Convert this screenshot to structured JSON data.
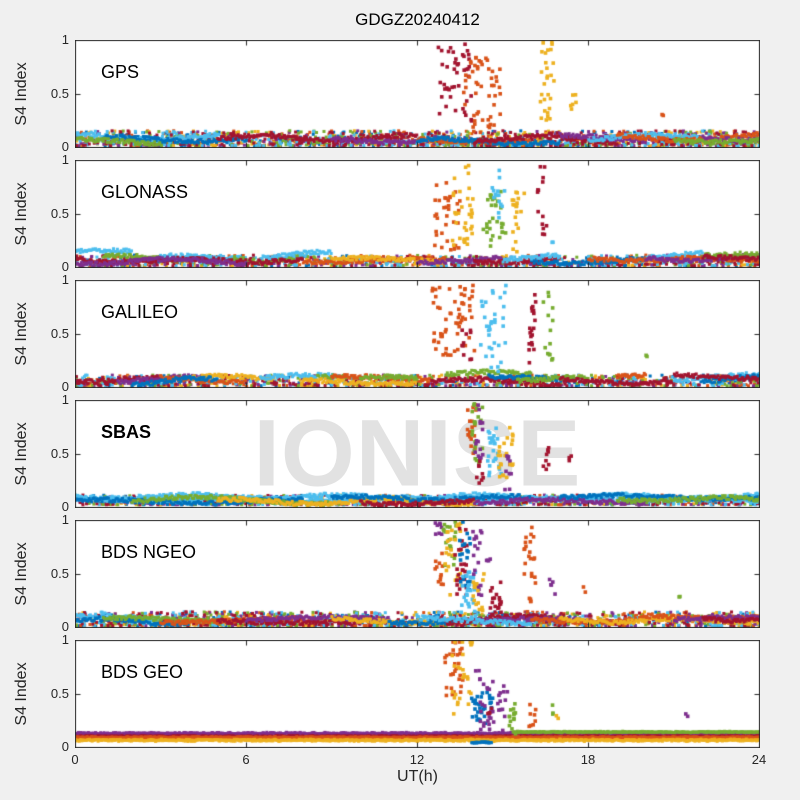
{
  "figure": {
    "background": "#f0f0f0",
    "axes_color": "#262626",
    "watermark": {
      "text": "IONISE",
      "color": "#e2e2e2"
    }
  },
  "chart_data": {
    "type": "scatter",
    "title": "GDGZ20240412",
    "xlabel": "UT(h)",
    "ylabel": "S4 Index",
    "xlim": [
      0,
      24
    ],
    "ylim": [
      0,
      1
    ],
    "x_ticks": [
      0,
      6,
      12,
      18,
      24
    ],
    "x_tick_labels": [
      "0",
      "6",
      "12",
      "18",
      "24"
    ],
    "y_ticks": [
      0,
      0.5,
      1
    ],
    "y_tick_labels": [
      "0",
      "0.5",
      "1"
    ],
    "grid": false,
    "legend": "none",
    "marker": "filled-square",
    "palette": [
      "#0072BD",
      "#D95319",
      "#EDB120",
      "#7E2F8E",
      "#77AC30",
      "#4DBEEE",
      "#A2142F"
    ],
    "tracks_format": "[color_index, t_start_h, t_end_h, s4_level]",
    "bursts_format": "[color_index, t_start_h, t_end_h, s4_min, s4_max, n_points]",
    "panels": [
      {
        "label": "GPS",
        "label_bold": false,
        "noise_band": {
          "y0": 0.02,
          "y1": 0.16,
          "per_color": 250
        },
        "tracks": [
          [
            5,
            0,
            5,
            0.1
          ],
          [
            0,
            1,
            6,
            0.08
          ],
          [
            4,
            0,
            3,
            0.06
          ],
          [
            6,
            5,
            12,
            0.09
          ],
          [
            3,
            9,
            12,
            0.08
          ],
          [
            1,
            12,
            16,
            0.08
          ],
          [
            0,
            12,
            17,
            0.06
          ],
          [
            6,
            14,
            19,
            0.08
          ],
          [
            3,
            17,
            20,
            0.09
          ],
          [
            5,
            18,
            22,
            0.09
          ],
          [
            1,
            19,
            24,
            0.1
          ],
          [
            3,
            22,
            24,
            0.1
          ],
          [
            4,
            21,
            24,
            0.07
          ]
        ],
        "bursts": [
          [
            6,
            12.7,
            13.9,
            0.25,
            0.97,
            45
          ],
          [
            1,
            13.6,
            14.7,
            0.12,
            0.85,
            40
          ],
          [
            1,
            14.4,
            14.9,
            0.3,
            0.75,
            12
          ],
          [
            2,
            16.3,
            16.8,
            0.25,
            1.0,
            28
          ],
          [
            2,
            17.3,
            17.6,
            0.35,
            0.55,
            6
          ],
          [
            1,
            20.5,
            20.7,
            0.28,
            0.32,
            2
          ]
        ]
      },
      {
        "label": "GLONASS",
        "label_bold": false,
        "noise_band": {
          "y0": 0.02,
          "y1": 0.12,
          "per_color": 150
        },
        "tracks": [
          [
            5,
            0,
            2,
            0.13
          ],
          [
            4,
            1,
            4,
            0.09
          ],
          [
            5,
            3,
            6,
            0.1
          ],
          [
            4,
            5.5,
            8,
            0.1
          ],
          [
            5,
            6.5,
            9,
            0.12
          ],
          [
            6,
            0,
            8,
            0.07
          ],
          [
            3,
            0,
            6,
            0.06
          ],
          [
            1,
            8,
            13,
            0.07
          ],
          [
            2,
            9,
            13,
            0.06
          ],
          [
            3,
            12,
            15,
            0.08
          ],
          [
            6,
            14,
            17,
            0.07
          ],
          [
            0,
            16,
            20,
            0.07
          ],
          [
            5,
            15,
            17,
            0.09
          ],
          [
            5,
            20,
            22,
            0.12
          ],
          [
            1,
            18,
            24,
            0.08
          ],
          [
            3,
            20,
            24,
            0.09
          ],
          [
            4,
            22,
            24,
            0.11
          ],
          [
            6,
            22,
            24,
            0.1
          ]
        ],
        "bursts": [
          [
            1,
            12.6,
            13.5,
            0.15,
            0.82,
            35
          ],
          [
            2,
            13.2,
            14.0,
            0.2,
            1.0,
            35
          ],
          [
            4,
            14.3,
            15.1,
            0.15,
            0.72,
            30
          ],
          [
            5,
            14.6,
            15.05,
            0.3,
            0.97,
            15
          ],
          [
            2,
            15.3,
            15.75,
            0.15,
            0.85,
            20
          ],
          [
            6,
            16.2,
            16.55,
            0.25,
            0.95,
            14
          ],
          [
            5,
            16.7,
            16.8,
            0.22,
            0.28,
            2
          ]
        ]
      },
      {
        "label": "GALILEO",
        "label_bold": false,
        "noise_band": {
          "y0": 0.02,
          "y1": 0.12,
          "per_color": 150
        },
        "tracks": [
          [
            6,
            0,
            3,
            0.09
          ],
          [
            3,
            1.5,
            4.5,
            0.08
          ],
          [
            1,
            3,
            6,
            0.08
          ],
          [
            2,
            4,
            7,
            0.09
          ],
          [
            0,
            2,
            5,
            0.06
          ],
          [
            5,
            6.5,
            9.5,
            0.1
          ],
          [
            4,
            8.5,
            9.5,
            0.12
          ],
          [
            1,
            9,
            12.5,
            0.09
          ],
          [
            2,
            8,
            12,
            0.06
          ],
          [
            4,
            10,
            12,
            0.09
          ],
          [
            4,
            13,
            16,
            0.12
          ],
          [
            6,
            12.5,
            17,
            0.05
          ],
          [
            0,
            14.5,
            17.5,
            0.09
          ],
          [
            4,
            15.5,
            18,
            0.08
          ],
          [
            6,
            17,
            21,
            0.06
          ],
          [
            1,
            19,
            20,
            0.1
          ],
          [
            5,
            21,
            24,
            0.09
          ],
          [
            0,
            22,
            24,
            0.08
          ],
          [
            6,
            21,
            24,
            0.11
          ]
        ],
        "bursts": [
          [
            1,
            12.4,
            14.0,
            0.3,
            0.95,
            60
          ],
          [
            6,
            13.5,
            13.9,
            0.2,
            0.55,
            10
          ],
          [
            5,
            14.2,
            15.1,
            0.15,
            0.95,
            35
          ],
          [
            6,
            15.9,
            16.15,
            0.2,
            0.95,
            20
          ],
          [
            4,
            16.4,
            16.75,
            0.25,
            0.9,
            14
          ],
          [
            4,
            20.0,
            20.2,
            0.28,
            0.32,
            2
          ]
        ]
      },
      {
        "label": "SBAS",
        "label_bold": true,
        "noise_band": {
          "y0": 0.03,
          "y1": 0.12,
          "per_color": 160
        },
        "tracks": [
          [
            5,
            0,
            24,
            0.1
          ],
          [
            5,
            0,
            24,
            0.08
          ],
          [
            0,
            0,
            8,
            0.06
          ],
          [
            4,
            2,
            9,
            0.07
          ],
          [
            2,
            5,
            14,
            0.06
          ],
          [
            0,
            9,
            16,
            0.09
          ],
          [
            3,
            14,
            20,
            0.06
          ],
          [
            0,
            17,
            24,
            0.1
          ],
          [
            4,
            19,
            24,
            0.08
          ],
          [
            6,
            10,
            14,
            0.05
          ]
        ],
        "bursts": [
          [
            1,
            13.75,
            14.1,
            0.5,
            0.97,
            18
          ],
          [
            4,
            13.9,
            14.3,
            0.3,
            1.0,
            20
          ],
          [
            3,
            14.0,
            14.35,
            0.45,
            1.0,
            15
          ],
          [
            6,
            14.05,
            14.3,
            0.2,
            0.5,
            8
          ],
          [
            5,
            14.45,
            14.95,
            0.28,
            0.75,
            25
          ],
          [
            2,
            14.75,
            15.15,
            0.25,
            0.65,
            15
          ],
          [
            3,
            15.0,
            15.35,
            0.12,
            0.5,
            10
          ],
          [
            2,
            15.1,
            15.35,
            0.35,
            0.8,
            8
          ],
          [
            6,
            16.4,
            16.6,
            0.35,
            0.6,
            8
          ],
          [
            6,
            17.25,
            17.4,
            0.42,
            0.5,
            3
          ]
        ]
      },
      {
        "label": "BDS NGEO",
        "label_bold": false,
        "noise_band": {
          "y0": 0.02,
          "y1": 0.15,
          "per_color": 230
        },
        "tracks": [
          [
            5,
            0,
            3,
            0.09
          ],
          [
            0,
            0,
            4,
            0.06
          ],
          [
            4,
            1,
            5,
            0.08
          ],
          [
            1,
            3,
            8,
            0.07
          ],
          [
            6,
            5,
            10,
            0.06
          ],
          [
            3,
            6,
            11,
            0.08
          ],
          [
            2,
            9,
            13,
            0.07
          ],
          [
            0,
            11,
            14,
            0.06
          ],
          [
            6,
            13,
            17,
            0.08
          ],
          [
            3,
            14,
            18,
            0.07
          ],
          [
            1,
            16,
            20,
            0.09
          ],
          [
            2,
            17,
            24,
            0.07
          ],
          [
            1,
            20,
            24,
            0.1
          ],
          [
            3,
            21,
            24,
            0.08
          ],
          [
            6,
            22,
            24,
            0.09
          ],
          [
            5,
            12,
            16,
            0.07
          ]
        ],
        "bursts": [
          [
            3,
            12.55,
            12.85,
            0.85,
            1.0,
            8
          ],
          [
            1,
            12.6,
            12.95,
            0.35,
            0.7,
            12
          ],
          [
            4,
            12.9,
            13.35,
            0.55,
            1.0,
            20
          ],
          [
            2,
            12.95,
            13.55,
            0.3,
            0.97,
            25
          ],
          [
            6,
            13.3,
            13.75,
            0.3,
            0.92,
            25
          ],
          [
            0,
            13.45,
            13.85,
            0.35,
            1.0,
            20
          ],
          [
            5,
            13.5,
            14.05,
            0.1,
            0.55,
            30
          ],
          [
            3,
            13.9,
            14.25,
            0.3,
            1.0,
            20
          ],
          [
            2,
            13.95,
            14.35,
            0.15,
            0.6,
            15
          ],
          [
            6,
            14.55,
            14.95,
            0.1,
            0.45,
            20
          ],
          [
            3,
            14.4,
            14.6,
            0.5,
            0.65,
            4
          ],
          [
            1,
            15.7,
            16.15,
            0.4,
            0.95,
            20
          ],
          [
            1,
            15.8,
            16.0,
            0.15,
            0.3,
            5
          ],
          [
            3,
            16.6,
            16.85,
            0.3,
            0.45,
            5
          ],
          [
            1,
            17.8,
            17.9,
            0.33,
            0.38,
            2
          ],
          [
            4,
            21.1,
            21.2,
            0.26,
            0.3,
            2
          ]
        ]
      },
      {
        "label": "BDS GEO",
        "label_bold": false,
        "noise_band": {
          "y0": 0.0,
          "y1": 0.0,
          "per_color": 0
        },
        "flat_bands_format": "[color_index, t_start_h, t_end_h, s4_level, jitter]",
        "flat_bands": [
          [
            3,
            0,
            24,
            0.135,
            0.012
          ],
          [
            6,
            0,
            24,
            0.108,
            0.008
          ],
          [
            1,
            0,
            24,
            0.098,
            0.008
          ],
          [
            2,
            0,
            24,
            0.072,
            0.012
          ],
          [
            4,
            15.35,
            24,
            0.148,
            0.008
          ],
          [
            0,
            13.9,
            14.6,
            0.052,
            0.01
          ]
        ],
        "tracks": [],
        "bursts": [
          [
            1,
            12.95,
            13.6,
            0.45,
            1.0,
            30
          ],
          [
            2,
            13.2,
            13.9,
            0.3,
            1.0,
            25
          ],
          [
            2,
            13.85,
            13.95,
            0.95,
            1.0,
            3
          ],
          [
            0,
            13.9,
            14.65,
            0.15,
            0.52,
            30
          ],
          [
            3,
            14.15,
            15.15,
            0.15,
            0.62,
            35
          ],
          [
            3,
            14.0,
            14.2,
            0.62,
            0.72,
            4
          ],
          [
            6,
            14.4,
            14.6,
            0.3,
            0.4,
            4
          ],
          [
            4,
            15.2,
            15.45,
            0.1,
            0.45,
            15
          ],
          [
            1,
            15.9,
            16.15,
            0.2,
            0.42,
            8
          ],
          [
            4,
            16.7,
            16.85,
            0.3,
            0.42,
            3
          ],
          [
            2,
            16.85,
            16.95,
            0.26,
            0.3,
            2
          ],
          [
            3,
            21.4,
            21.5,
            0.28,
            0.33,
            2
          ]
        ]
      }
    ]
  }
}
